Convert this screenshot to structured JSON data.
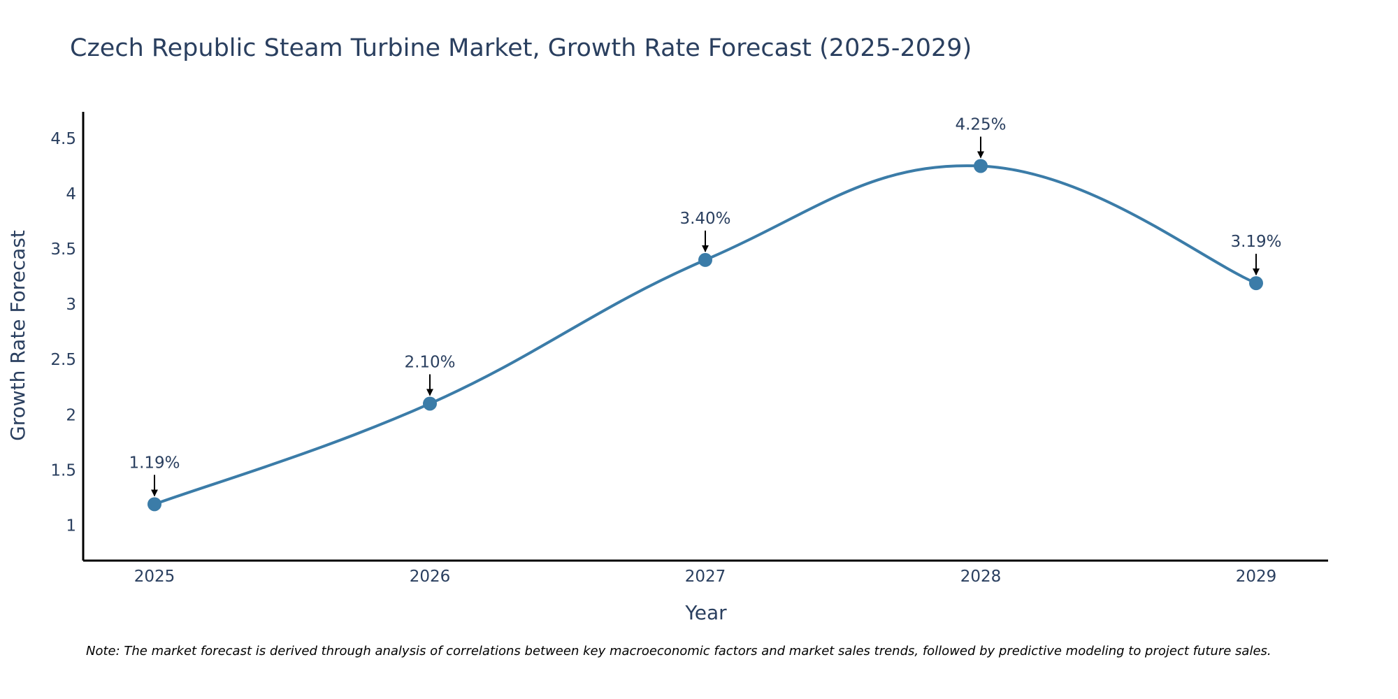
{
  "chart_data": {
    "type": "line",
    "title": "Czech Republic Steam Turbine Market, Growth Rate Forecast (2025-2029)",
    "xlabel": "Year",
    "ylabel": "Growth Rate Forecast",
    "categories": [
      "2025",
      "2026",
      "2027",
      "2028",
      "2029"
    ],
    "series": [
      {
        "name": "Growth Rate Forecast",
        "values": [
          1.19,
          2.1,
          3.4,
          4.25,
          3.19
        ],
        "labels": [
          "1.19%",
          "2.10%",
          "3.40%",
          "4.25%",
          "3.19%"
        ],
        "color": "#3b7ca8"
      }
    ],
    "ylim": [
      0.68,
      4.74
    ],
    "yticks": [
      1,
      1.5,
      2,
      2.5,
      3,
      3.5,
      4,
      4.5
    ],
    "ytick_labels": [
      "1",
      "1.5",
      "2",
      "2.5",
      "3",
      "3.5",
      "4",
      "4.5"
    ],
    "grid": false,
    "legend": "none",
    "note": "Note: The market forecast is derived through analysis of correlations between key macroeconomic factors and market sales trends, followed by predictive modeling to project future sales."
  }
}
